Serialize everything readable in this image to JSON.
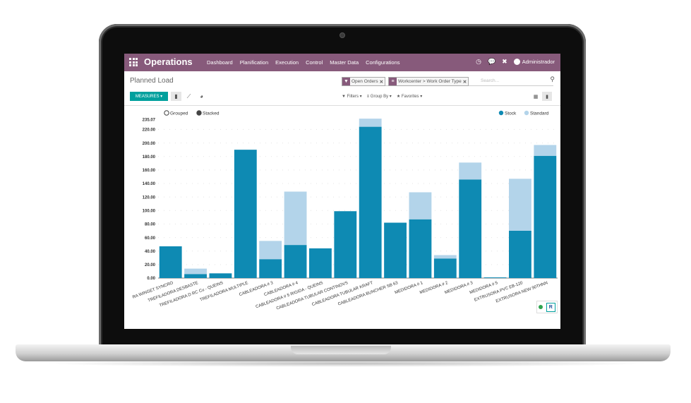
{
  "navbar": {
    "brand": "Operations",
    "menu": [
      "Dashboard",
      "Planification",
      "Execution",
      "Control",
      "Master Data",
      "Configurations"
    ],
    "user": "Administrador",
    "color": "#875a7b"
  },
  "control_panel": {
    "title": "Planned Load",
    "measures_label": "MEASURES ▾",
    "facets": [
      "Open Orders",
      "Workcenter > Work Order Type"
    ],
    "search_placeholder": "Search...",
    "filters_label": "Filters ▾",
    "groupby_label": "Group By ▾",
    "favorites_label": "Favorites ▾",
    "accent": "#00a09d"
  },
  "chart_data": {
    "type": "bar",
    "mode_options": [
      "Grouped",
      "Stacked"
    ],
    "selected_mode": "Stacked",
    "ymax_label": "235.07",
    "ylim": [
      0,
      235.07
    ],
    "yticks": [
      "220.00",
      "200.00",
      "180.00",
      "160.00",
      "140.00",
      "120.00",
      "100.00",
      "80.00",
      "60.00",
      "40.00",
      "20.00",
      "0.00"
    ],
    "categories": [
      "RA WINGET SYNCRO",
      "TREFILADORA DESBASTE",
      "TREFILADORA D RC Cu - QUEINS",
      "TREFILADORA MULTIPLE",
      "CABLEADORA # 3",
      "CABLEADORA # 4",
      "CABLEADORA # 5 RIGIDA - QUEINS",
      "CABLEADORA TUBULAR CONTINOVS",
      "CABLEADORA TUBULAR KRAFT",
      "CABLEADORA BUNCHER SB 63",
      "MEDIDORA # 1",
      "MEDIDORA # 2",
      "MEDIDORA # 3",
      "MEDIDORA # 5",
      "EXTRUSORA PVC EB-120",
      "EXTRUSORA NEW 90THNN"
    ],
    "series": [
      {
        "name": "Stock",
        "color": "#0e8ab3",
        "values": [
          47,
          6,
          7,
          190,
          28,
          49,
          44,
          99,
          224,
          82,
          87,
          29,
          146,
          1,
          70,
          181
        ]
      },
      {
        "name": "Standard",
        "color": "#b3d4ea",
        "values": [
          0,
          8,
          0,
          0,
          27,
          79,
          0,
          0,
          12,
          0,
          40,
          5,
          25,
          0,
          77,
          16
        ]
      }
    ],
    "legend_placement": "top-right"
  }
}
